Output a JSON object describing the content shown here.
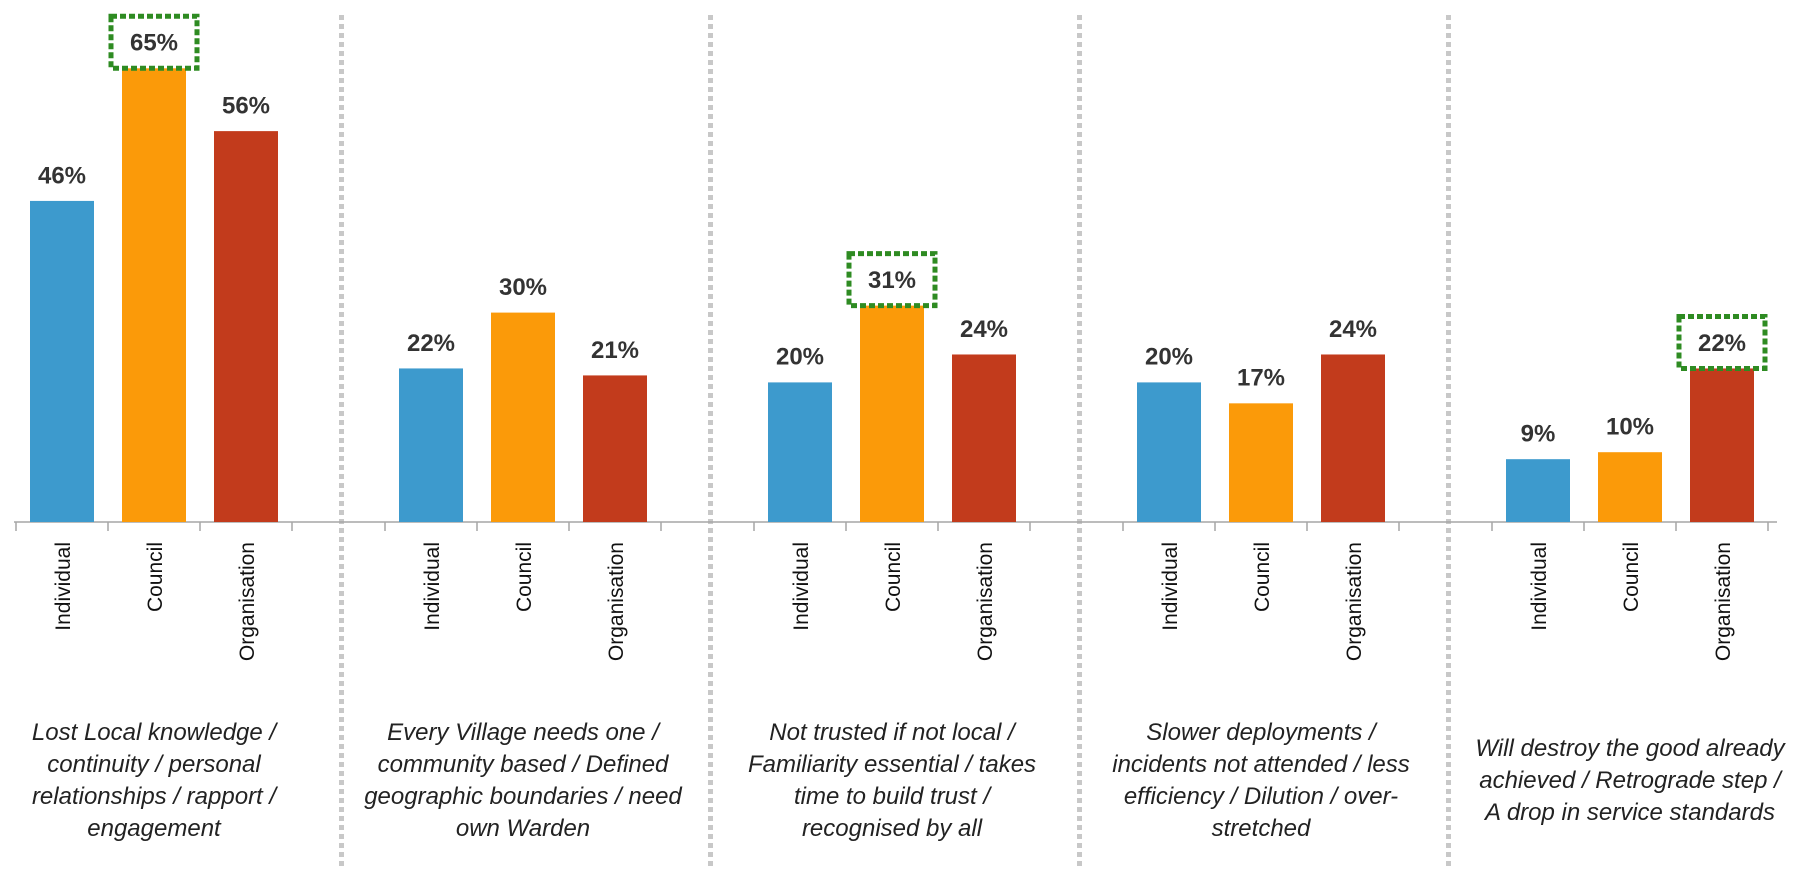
{
  "chart_data": {
    "type": "bar",
    "categories": [
      "Lost Local knowledge / continuity / personal relationships / rapport / engagement",
      "Every Village needs one / community based / Defined geographic boundaries / need own Warden",
      "Not trusted if not local / Familiarity essential / takes time to build trust / recognised by all",
      "Slower deployments / incidents not attended / less efficiency / Dilution / over-stretched",
      "Will destroy the good already achieved / Retrograde step / A drop in service standards"
    ],
    "series": [
      {
        "name": "Individual",
        "color": "#3d9acd",
        "values": [
          46,
          22,
          20,
          20,
          9
        ],
        "value_labels": [
          "46%",
          "22%",
          "20%",
          "20%",
          "9%"
        ]
      },
      {
        "name": "Council",
        "color": "#fb9a09",
        "values": [
          65,
          30,
          31,
          17,
          10
        ],
        "value_labels": [
          "65%",
          "30%",
          "31%",
          "17%",
          "10%"
        ]
      },
      {
        "name": "Organisation",
        "color": "#c23b1c",
        "values": [
          56,
          21,
          24,
          24,
          22
        ],
        "value_labels": [
          "56%",
          "21%",
          "24%",
          "24%",
          "22%"
        ]
      }
    ],
    "highlight_series": [
      1,
      null,
      1,
      null,
      2
    ],
    "highlight_color": "#2e8b22"
  }
}
